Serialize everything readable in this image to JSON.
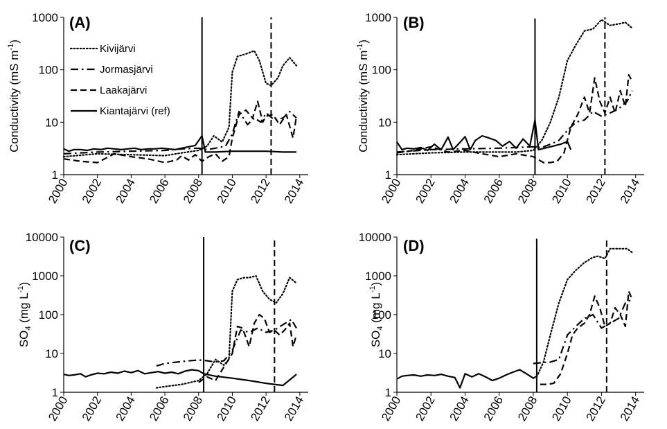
{
  "figure": {
    "legend": [
      {
        "name": "Kivijärvi",
        "style": "dotted"
      },
      {
        "name": "Jormasjärvi",
        "style": "dashdot"
      },
      {
        "name": "Laakajärvi",
        "style": "dashed"
      },
      {
        "name": "Kiantajärvi (ref)",
        "style": "solid"
      }
    ],
    "line_color": "#000000",
    "background": "#ffffff"
  },
  "chart_data": [
    {
      "panel": "(A)",
      "type": "line",
      "ylabel_main": "Conductivity  (mS m",
      "ylabel_sup": "-1",
      "ylabel_end": ")",
      "yscale": "log",
      "ylim": [
        1,
        1000
      ],
      "yticks": [
        "1",
        "10",
        "100",
        "1000"
      ],
      "xlim": [
        2000,
        2014.5
      ],
      "xticks": [
        "2000",
        "2002",
        "2004",
        "2006",
        "2008",
        "2010",
        "2012",
        "2014"
      ],
      "vlines": [
        {
          "x": 2008.2,
          "style": "solid",
          "top": 1000
        },
        {
          "x": 2012.3,
          "style": "dashed",
          "top": 1000
        }
      ],
      "legend_position": "upper-left",
      "series": [
        {
          "name": "Kivijärvi",
          "style": "dotted",
          "x": [
            2000,
            2002,
            2004,
            2006,
            2007,
            2008,
            2008.5,
            2008.9,
            2009.4,
            2009.8,
            2010,
            2010.3,
            2010.8,
            2011.3,
            2011.6,
            2012,
            2012.3,
            2012.7,
            2013,
            2013.4,
            2013.8
          ],
          "y": [
            2.2,
            2.5,
            2.4,
            2.3,
            2.6,
            2.9,
            3.5,
            5.5,
            4.2,
            8,
            90,
            180,
            200,
            230,
            150,
            55,
            50,
            70,
            120,
            170,
            120
          ]
        },
        {
          "name": "Jormasjärvi",
          "style": "dashdot",
          "x": [
            2000,
            2002,
            2004,
            2006,
            2007,
            2008,
            2008.5,
            2009,
            2009.6,
            2010,
            2010.4,
            2010.9,
            2011.3,
            2011.7,
            2012,
            2012.5,
            2013,
            2013.4,
            2013.8
          ],
          "y": [
            2.5,
            2.7,
            2.8,
            2.9,
            3.1,
            3.2,
            3.0,
            3.2,
            3.5,
            6,
            16,
            9,
            12,
            10,
            15,
            11,
            12,
            16,
            12
          ]
        },
        {
          "name": "Laakajärvi",
          "style": "dashed",
          "x": [
            2000,
            2001,
            2002,
            2003,
            2004,
            2005,
            2006,
            2006.7,
            2007,
            2007.4,
            2007.8,
            2008.2,
            2008.6,
            2009,
            2009.4,
            2009.8,
            2010,
            2010.4,
            2010.8,
            2011.2,
            2011.5,
            2011.8,
            2012,
            2012.4,
            2012.8,
            2013.2,
            2013.6,
            2013.8
          ],
          "y": [
            2.0,
            1.8,
            1.7,
            2.5,
            2.2,
            2.0,
            1.7,
            1.9,
            2.3,
            1.9,
            2.4,
            1.8,
            2.2,
            2.5,
            1.8,
            2.2,
            5,
            14,
            17,
            12,
            25,
            10,
            13,
            14,
            9,
            14,
            5,
            13
          ]
        },
        {
          "name": "Kiantajärvi (ref)",
          "style": "solid",
          "x": [
            2000,
            2000.3,
            2000.6,
            2001,
            2001.4,
            2001.8,
            2002.2,
            2002.6,
            2003,
            2003.4,
            2003.8,
            2004.2,
            2004.6,
            2005,
            2005.4,
            2005.8,
            2006.2,
            2006.6,
            2007,
            2007.4,
            2007.8,
            2008.2,
            2008.4,
            2009,
            2010,
            2011,
            2012,
            2013,
            2013.8
          ],
          "y": [
            3.1,
            2.8,
            3.0,
            3.0,
            2.9,
            3.1,
            3.0,
            3.2,
            3.1,
            3.0,
            3.1,
            3.2,
            3.0,
            3.1,
            3.1,
            3.2,
            3.1,
            3.0,
            3.2,
            3.4,
            3.6,
            5.5,
            2.7,
            2.7,
            2.8,
            2.8,
            2.8,
            2.7,
            2.7
          ]
        }
      ]
    },
    {
      "panel": "(B)",
      "type": "line",
      "ylabel_main": "Conductivity  (mS m",
      "ylabel_sup": "-1",
      "ylabel_end": ")",
      "yscale": "log",
      "ylim": [
        1,
        1000
      ],
      "yticks": [
        "1",
        "10",
        "100",
        "1000"
      ],
      "xlim": [
        2000,
        2014.5
      ],
      "xticks": [
        "2000",
        "2002",
        "2004",
        "2006",
        "2008",
        "2010",
        "2012",
        "2014"
      ],
      "vlines": [
        {
          "x": 2008.1,
          "style": "solid",
          "top": 950
        },
        {
          "x": 2012.2,
          "style": "dashed",
          "top": 1000
        }
      ],
      "legend_position": "none",
      "series": [
        {
          "name": "Kivijärvi",
          "style": "dotted",
          "x": [
            2000,
            2002,
            2004,
            2006,
            2007,
            2008,
            2008.5,
            2009,
            2009.5,
            2010,
            2010.5,
            2011,
            2011.5,
            2012,
            2012.5,
            2013,
            2013.4,
            2013.8
          ],
          "y": [
            2.4,
            2.6,
            2.7,
            2.7,
            2.7,
            2.9,
            4.5,
            10,
            30,
            150,
            300,
            550,
            600,
            900,
            700,
            750,
            800,
            620
          ]
        },
        {
          "name": "Jormasjärvi",
          "style": "dashdot",
          "x": [
            2000,
            2002,
            2004,
            2006,
            2007,
            2008,
            2008.5,
            2009,
            2009.5,
            2010,
            2010.5,
            2011,
            2011.5,
            2012,
            2012.5,
            2013,
            2013.5,
            2013.8
          ],
          "y": [
            2.7,
            3.0,
            3.1,
            3.2,
            3.3,
            3.4,
            3.3,
            3.8,
            4.5,
            7,
            10,
            11,
            16,
            13,
            15,
            18,
            25,
            40
          ]
        },
        {
          "name": "Laakajärvi",
          "style": "dashed",
          "x": [
            2000,
            2001,
            2002,
            2003,
            2004,
            2005,
            2006,
            2007,
            2008,
            2008.6,
            2009,
            2009.4,
            2009.8,
            2010.2,
            2010.6,
            2011,
            2011.3,
            2011.6,
            2011.9,
            2012.2,
            2012.5,
            2012.8,
            2013.1,
            2013.4,
            2013.6,
            2013.8
          ],
          "y": [
            2.6,
            2.9,
            3.4,
            2.7,
            2.9,
            2.5,
            2.2,
            2.5,
            2.2,
            1.7,
            1.7,
            1.8,
            2.6,
            8,
            14,
            30,
            15,
            70,
            25,
            15,
            30,
            15,
            40,
            20,
            80,
            60
          ]
        },
        {
          "name": "Kiantajärvi (ref)",
          "style": "solid",
          "x": [
            2000,
            2000.3,
            2000.6,
            2001,
            2001.4,
            2001.8,
            2002.2,
            2002.6,
            2003,
            2003.3,
            2003.6,
            2004,
            2004.3,
            2004.6,
            2005,
            2005.4,
            2005.8,
            2006.2,
            2006.6,
            2007,
            2007.4,
            2007.8,
            2008.1,
            2008.3,
            2009,
            2009.6,
            2010,
            2010.2
          ],
          "y": [
            4.2,
            3.0,
            3.2,
            3.1,
            3.3,
            2.9,
            3.8,
            3.0,
            5.2,
            3.0,
            3.8,
            5.3,
            3.0,
            4.5,
            5.5,
            5.0,
            4.5,
            3.5,
            4.3,
            3.2,
            4.8,
            3.5,
            11,
            3.0,
            3.4,
            3.8,
            4.3,
            3.0
          ]
        }
      ]
    },
    {
      "panel": "(C)",
      "type": "line",
      "ylabel_main": "SO",
      "ylabel_sub": "4",
      "ylabel_rest": " (mg L",
      "ylabel_sup": "-1",
      "ylabel_end": ")",
      "yscale": "log",
      "ylim": [
        1,
        10000
      ],
      "yticks": [
        "1",
        "10",
        "100",
        "1000",
        "10000"
      ],
      "xlim": [
        2000,
        2014.5
      ],
      "xticks": [
        "2000",
        "2002",
        "2004",
        "2006",
        "2008",
        "2010",
        "2012",
        "2014"
      ],
      "vlines": [
        {
          "x": 2008.3,
          "style": "solid",
          "top": 10000
        },
        {
          "x": 2012.5,
          "style": "dashed",
          "top": 10000
        }
      ],
      "legend_position": "none",
      "series": [
        {
          "name": "Kivijärvi",
          "style": "dotted",
          "x": [
            2005.5,
            2006,
            2007,
            2008,
            2008.5,
            2009,
            2009.5,
            2009.8,
            2010,
            2010.3,
            2010.7,
            2011,
            2011.4,
            2011.8,
            2012.2,
            2012.6,
            2013,
            2013.4,
            2013.8
          ],
          "y": [
            1.3,
            1.4,
            1.6,
            2.0,
            3.0,
            7,
            5,
            7,
            400,
            800,
            900,
            900,
            1000,
            400,
            250,
            200,
            350,
            900,
            650
          ]
        },
        {
          "name": "Jormasjärvi",
          "style": "dashdot",
          "x": [
            2005.5,
            2006,
            2007,
            2008,
            2008.5,
            2009,
            2009.5,
            2010,
            2010.5,
            2011,
            2011.5,
            2012,
            2012.5,
            2013,
            2013.5,
            2013.8
          ],
          "y": [
            4.8,
            5.5,
            6.2,
            6.8,
            6.5,
            6.0,
            6.5,
            12,
            40,
            35,
            45,
            35,
            40,
            55,
            75,
            45
          ]
        },
        {
          "name": "Laakajärvi",
          "style": "dashed",
          "x": [
            2008,
            2008.5,
            2009,
            2009.5,
            2010,
            2010.3,
            2010.6,
            2011,
            2011.3,
            2011.6,
            2011.9,
            2012.2,
            2012.5,
            2012.8,
            2013.1,
            2013.4,
            2013.6,
            2013.8
          ],
          "y": [
            1.8,
            2.5,
            2.0,
            4.5,
            10,
            50,
            45,
            15,
            60,
            100,
            80,
            35,
            40,
            30,
            40,
            60,
            15,
            30
          ]
        },
        {
          "name": "Kiantajärvi (ref)",
          "style": "solid",
          "x": [
            2000,
            2000.3,
            2000.6,
            2001,
            2001.3,
            2001.6,
            2002,
            2002.4,
            2002.8,
            2003.2,
            2003.6,
            2004,
            2004.4,
            2004.8,
            2005.2,
            2005.6,
            2006,
            2006.4,
            2006.8,
            2007.2,
            2007.6,
            2008,
            2008.3,
            2009,
            2010,
            2011,
            2012,
            2013,
            2013.8
          ],
          "y": [
            2.9,
            2.7,
            2.8,
            3.0,
            2.5,
            2.8,
            3.1,
            3.0,
            3.3,
            3.1,
            3.5,
            3.2,
            3.6,
            3.0,
            3.2,
            3.4,
            3.1,
            3.3,
            3.0,
            3.5,
            3.8,
            3.6,
            3.0,
            2.6,
            2.3,
            2.0,
            1.7,
            1.5,
            2.9
          ]
        }
      ]
    },
    {
      "panel": "(D)",
      "type": "line",
      "ylabel_main": "SO",
      "ylabel_sub": "4",
      "ylabel_rest": " (mg L",
      "ylabel_sup": "-1",
      "ylabel_end": ")",
      "yscale": "log",
      "ylim": [
        1,
        10000
      ],
      "yticks": [
        "1",
        "10",
        "100",
        "1000",
        "10000"
      ],
      "xlim": [
        2000,
        2014.5
      ],
      "xticks": [
        "2000",
        "2002",
        "2004",
        "2006",
        "2008",
        "2010",
        "2012",
        "2014"
      ],
      "vlines": [
        {
          "x": 2008.2,
          "style": "solid",
          "top": 9000
        },
        {
          "x": 2012.3,
          "style": "dashed",
          "top": 9000
        }
      ],
      "legend_position": "none",
      "series": [
        {
          "name": "Kivijärvi",
          "style": "dotted",
          "x": [
            2008.2,
            2008.6,
            2009,
            2009.5,
            2010,
            2010.5,
            2011,
            2011.5,
            2011.8,
            2012.2,
            2012.5,
            2013,
            2013.5,
            2013.8
          ],
          "y": [
            2.5,
            6,
            30,
            200,
            800,
            1400,
            2200,
            3000,
            3200,
            2800,
            5000,
            5000,
            5000,
            4000
          ]
        },
        {
          "name": "Jormasjärvi",
          "style": "dashdot",
          "x": [
            2008,
            2008.5,
            2009,
            2009.5,
            2010,
            2010.5,
            2011,
            2011.5,
            2012,
            2012.5,
            2013,
            2013.4,
            2013.8
          ],
          "y": [
            5.5,
            5.8,
            6,
            7,
            30,
            50,
            80,
            100,
            45,
            60,
            80,
            200,
            250
          ]
        },
        {
          "name": "Laakajärvi",
          "style": "dashed",
          "x": [
            2008.4,
            2008.8,
            2009.2,
            2009.6,
            2010,
            2010.3,
            2010.6,
            2011,
            2011.3,
            2011.6,
            2011.9,
            2012.2,
            2012.5,
            2012.8,
            2013.1,
            2013.4,
            2013.6,
            2013.8
          ],
          "y": [
            1.6,
            1.6,
            1.7,
            3.0,
            10,
            30,
            45,
            60,
            100,
            300,
            150,
            50,
            60,
            150,
            100,
            50,
            400,
            250
          ]
        },
        {
          "name": "Kiantajärvi (ref)",
          "style": "solid",
          "x": [
            2000,
            2000.3,
            2000.6,
            2001,
            2001.4,
            2001.8,
            2002.2,
            2002.6,
            2003,
            2003.4,
            2003.7,
            2004,
            2004.4,
            2004.8,
            2005.2,
            2005.6,
            2006,
            2006.4,
            2006.8,
            2007.2,
            2007.6,
            2008,
            2008.2
          ],
          "y": [
            2.2,
            2.6,
            2.7,
            2.8,
            2.6,
            2.8,
            2.7,
            2.9,
            2.6,
            2.4,
            1.3,
            3.0,
            2.5,
            3.0,
            2.5,
            2.0,
            2.3,
            2.8,
            3.3,
            3.8,
            3.0,
            2.3,
            2.6
          ]
        }
      ]
    }
  ]
}
